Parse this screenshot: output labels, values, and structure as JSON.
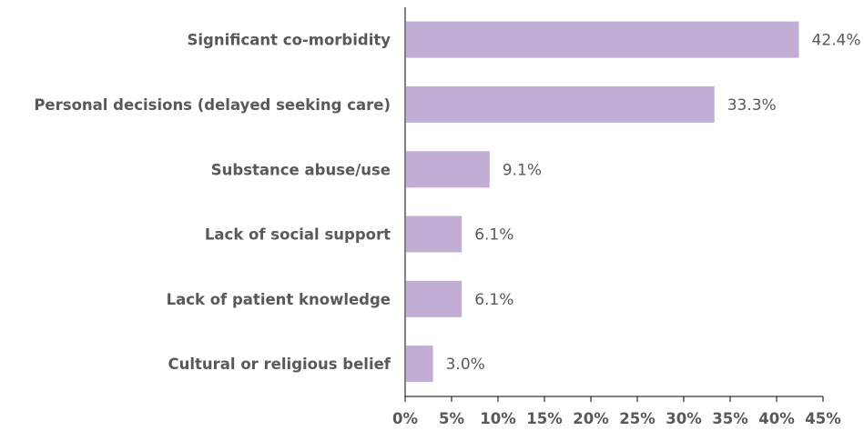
{
  "chart_data": {
    "type": "bar",
    "orientation": "horizontal",
    "categories": [
      "Significant co-morbidity",
      "Personal decisions (delayed seeking care)",
      "Substance abuse/use",
      "Lack of social support",
      "Lack of patient knowledge",
      "Cultural or religious belief"
    ],
    "values": [
      42.4,
      33.3,
      9.1,
      6.1,
      6.1,
      3.0
    ],
    "data_labels": [
      "42.4%",
      "33.3%",
      "9.1%",
      "6.1%",
      "6.1%",
      "3.0%"
    ],
    "x_ticks": [
      "0%",
      "5%",
      "10%",
      "15%",
      "20%",
      "25%",
      "30%",
      "35%",
      "40%",
      "45%"
    ],
    "xlim": [
      0,
      45
    ],
    "title": "",
    "xlabel": "",
    "ylabel": "",
    "grid": false,
    "legend": "none",
    "bar_color": "#c2aed4",
    "axis_color": "#000000",
    "text_color": "#595959"
  }
}
